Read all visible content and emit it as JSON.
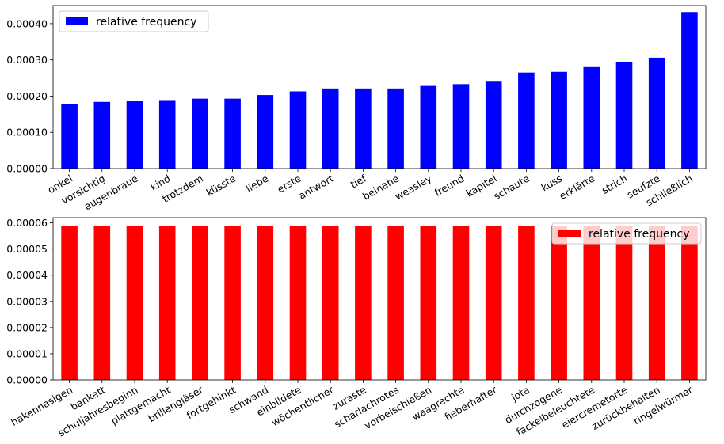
{
  "chart_data": [
    {
      "type": "bar",
      "title": "",
      "xlabel": "",
      "ylabel": "",
      "ylim": [
        0,
        0.00045
      ],
      "yticks": [
        "0.00000",
        "0.00010",
        "0.00020",
        "0.00030",
        "0.00040"
      ],
      "ytick_values": [
        0,
        0.0001,
        0.0002,
        0.0003,
        0.0004
      ],
      "legend_position": "top-left",
      "grid": false,
      "color": "#0000ff",
      "categories": [
        "onkel",
        "vorsichtig",
        "augenbraue",
        "kind",
        "trotzdem",
        "küsste",
        "liebe",
        "erste",
        "antwort",
        "tief",
        "beinahe",
        "weasley",
        "freund",
        "kapitel",
        "schaute",
        "kuss",
        "erklärte",
        "strich",
        "seufzte",
        "schließlich"
      ],
      "series": [
        {
          "name": "relative frequency",
          "values": [
            0.000179,
            0.000184,
            0.000186,
            0.000189,
            0.000193,
            0.000193,
            0.000203,
            0.000213,
            0.000221,
            0.000221,
            0.000221,
            0.000228,
            0.000233,
            0.000242,
            0.000265,
            0.000267,
            0.00028,
            0.000295,
            0.000306,
            0.000432
          ]
        }
      ]
    },
    {
      "type": "bar",
      "title": "",
      "xlabel": "",
      "ylabel": "",
      "ylim": [
        0,
        6.2e-05
      ],
      "yticks": [
        "0.00000",
        "0.00001",
        "0.00002",
        "0.00003",
        "0.00004",
        "0.00005",
        "0.00006"
      ],
      "ytick_values": [
        0,
        1e-05,
        2e-05,
        3e-05,
        4e-05,
        5e-05,
        6e-05
      ],
      "legend_position": "top-right",
      "grid": false,
      "color": "#ff0000",
      "categories": [
        "hakennasigen",
        "bankett",
        "schuljahresbeginn",
        "plattgemacht",
        "brillengläser",
        "fortgehinkt",
        "schwand",
        "einbildete",
        "wöchentlicher",
        "zuraste",
        "scharlachrotes",
        "vorbeischießen",
        "waagrechte",
        "fieberhafter",
        "jota",
        "durchzogene",
        "fackelbeleuchtete",
        "eiercremetorte",
        "zurückbehalten",
        "ringelwürmer"
      ],
      "series": [
        {
          "name": "relative frequency",
          "values": [
            5.89e-05,
            5.89e-05,
            5.89e-05,
            5.89e-05,
            5.89e-05,
            5.89e-05,
            5.89e-05,
            5.89e-05,
            5.89e-05,
            5.89e-05,
            5.89e-05,
            5.89e-05,
            5.89e-05,
            5.89e-05,
            5.89e-05,
            5.89e-05,
            5.89e-05,
            5.89e-05,
            5.89e-05,
            5.89e-05
          ]
        }
      ]
    }
  ]
}
